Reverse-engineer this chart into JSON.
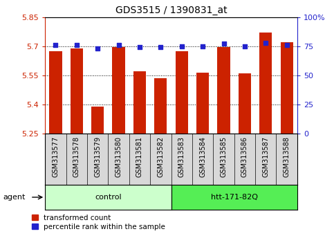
{
  "title": "GDS3515 / 1390831_at",
  "categories": [
    "GSM313577",
    "GSM313578",
    "GSM313579",
    "GSM313580",
    "GSM313581",
    "GSM313582",
    "GSM313583",
    "GSM313584",
    "GSM313585",
    "GSM313586",
    "GSM313587",
    "GSM313588"
  ],
  "bar_values": [
    5.675,
    5.69,
    5.39,
    5.695,
    5.57,
    5.535,
    5.675,
    5.565,
    5.695,
    5.56,
    5.77,
    5.72
  ],
  "percentile_values": [
    76,
    76,
    73,
    76,
    74,
    74,
    75,
    75,
    77,
    75,
    78,
    76
  ],
  "ylim_left": [
    5.25,
    5.85
  ],
  "ylim_right": [
    0,
    100
  ],
  "yticks_left": [
    5.25,
    5.4,
    5.55,
    5.7,
    5.85
  ],
  "yticks_right": [
    0,
    25,
    50,
    75,
    100
  ],
  "ytick_labels_left": [
    "5.25",
    "5.4",
    "5.55",
    "5.7",
    "5.85"
  ],
  "ytick_labels_right": [
    "0",
    "25",
    "50",
    "75",
    "100%"
  ],
  "bar_color": "#cc2200",
  "dot_color": "#2222cc",
  "control_n": 6,
  "treatment_n": 6,
  "control_label": "control",
  "treatment_label": "htt-171-82Q",
  "agent_label": "agent",
  "legend_bar_label": "transformed count",
  "legend_dot_label": "percentile rank within the sample",
  "control_color": "#ccffcc",
  "treatment_color": "#55ee55",
  "bg_color": "#ffffff",
  "tick_label_color_left": "#cc2200",
  "tick_label_color_right": "#2222cc",
  "bar_width": 0.6,
  "xtick_bg_color": "#d8d8d8"
}
